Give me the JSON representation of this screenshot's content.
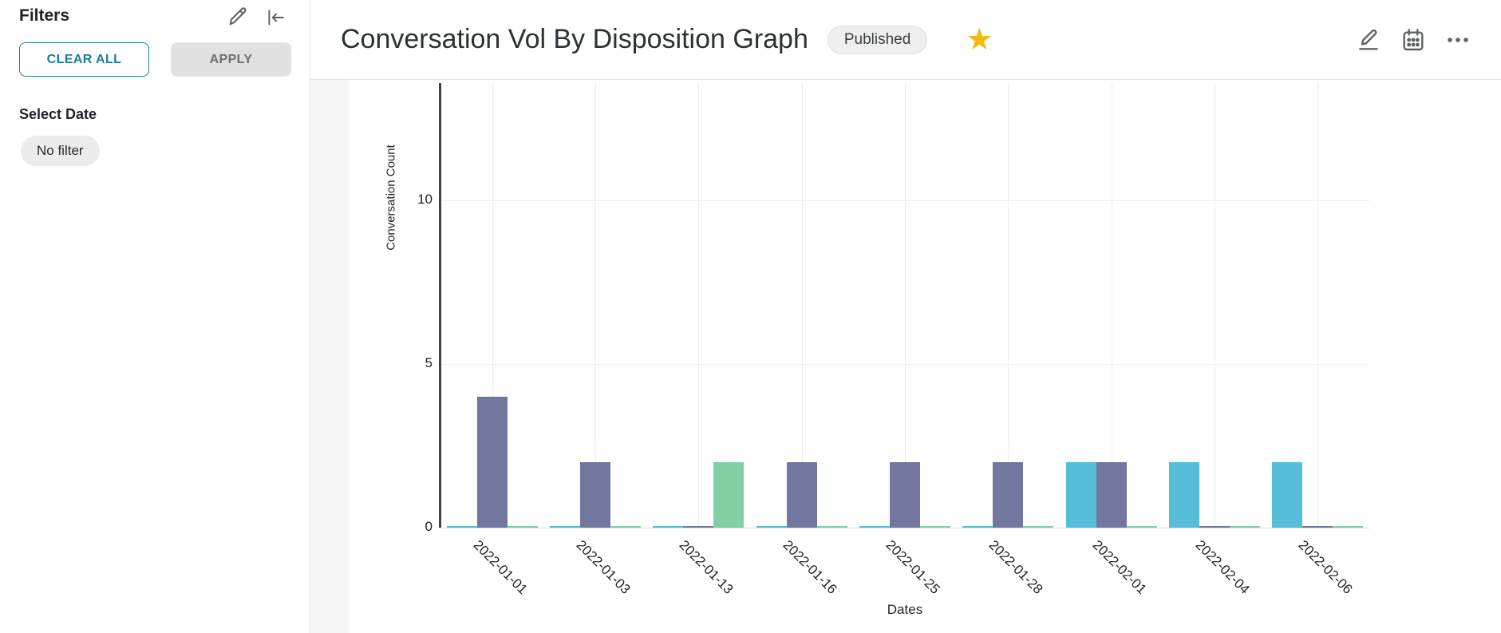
{
  "sidebar": {
    "title": "Filters",
    "clear_all_label": "CLEAR ALL",
    "apply_label": "APPLY",
    "select_date_label": "Select Date",
    "no_filter_label": "No filter"
  },
  "header": {
    "title": "Conversation Vol By Disposition Graph",
    "status_badge": "Published",
    "star_glyph": "★"
  },
  "colors": {
    "accent_teal": "#1b7f96",
    "star_gold": "#F5B80E",
    "axis_dark": "#3d434b",
    "gridline": "#ececec"
  },
  "chart_data": {
    "type": "bar",
    "title": "",
    "xlabel": "Dates",
    "ylabel": "Conversation Count",
    "ylim": [
      0,
      13.6
    ],
    "yticks": [
      0,
      5,
      10
    ],
    "grid": true,
    "legend_position": "none",
    "categories": [
      "2022-01-01",
      "2022-01-03",
      "2022-01-13",
      "2022-01-16",
      "2022-01-25",
      "2022-01-28",
      "2022-02-01",
      "2022-02-04",
      "2022-02-06"
    ],
    "series": [
      {
        "name": "cyan",
        "color": "#56BED8",
        "values": [
          0,
          0,
          0,
          0,
          0,
          0,
          2,
          2,
          2
        ]
      },
      {
        "name": "purple",
        "color": "#7277A0",
        "values": [
          4,
          2,
          0,
          2,
          2,
          2,
          2,
          0,
          0
        ]
      },
      {
        "name": "green",
        "color": "#82CFA4",
        "values": [
          0,
          0,
          2,
          0,
          0,
          0,
          0,
          0,
          0
        ]
      }
    ]
  }
}
